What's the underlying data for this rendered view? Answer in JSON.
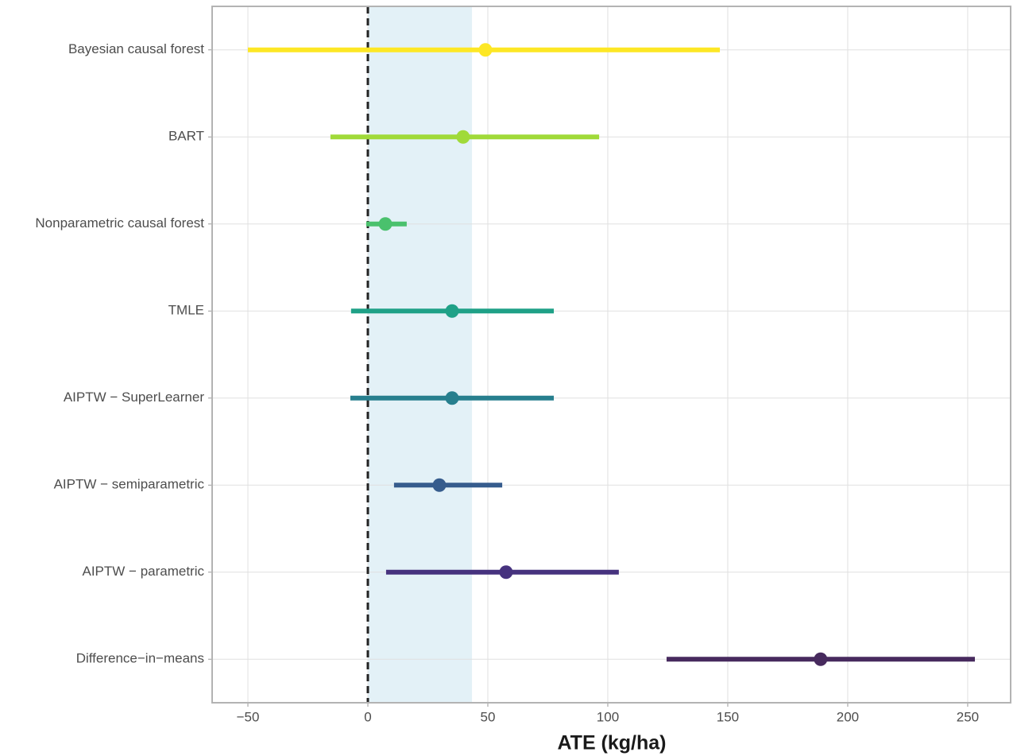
{
  "chart_data": {
    "type": "forest",
    "x_label": "ATE (kg/ha)",
    "categories": [
      "Bayesian causal forest",
      "BART",
      "Nonparametric causal forest",
      "TMLE",
      "AIPTW − SuperLearner",
      "AIPTW − semiparametric",
      "AIPTW − parametric",
      "Difference−in−means"
    ],
    "values": [
      49,
      39.7,
      7.3,
      35.1,
      35.1,
      29.8,
      57.6,
      188.7
    ],
    "lower": [
      -50,
      -15.6,
      -0.7,
      -7,
      -7.3,
      10.9,
      7.6,
      124.5
    ],
    "upper": [
      146.7,
      96.4,
      16.2,
      77.5,
      77.5,
      56,
      104.6,
      253
    ],
    "colors": [
      "#fde725",
      "#a0da39",
      "#4ac16d",
      "#1fa187",
      "#277f8e",
      "#365c8d",
      "#46327e",
      "#472a5e"
    ],
    "band": [
      0,
      43.4
    ],
    "band_color": "#e3f1f7",
    "ref_line": 0,
    "xlim": [
      -64.9,
      267.9
    ],
    "xticks": [
      {
        "value": -50,
        "label": "−50"
      },
      0,
      50,
      100,
      150,
      200,
      250
    ],
    "grid": true
  }
}
